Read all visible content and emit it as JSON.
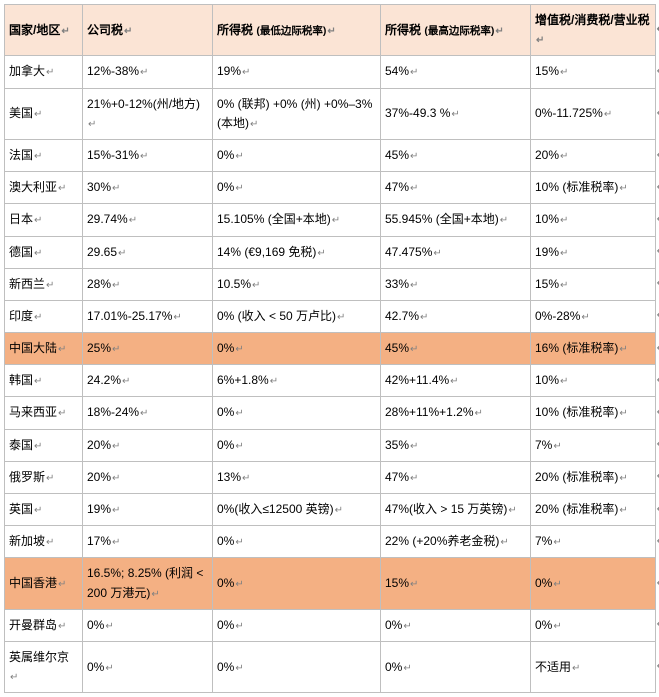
{
  "para_mark": "↵",
  "row_mark": "↵",
  "colors": {
    "header_bg": "#fbe4d5",
    "highlight_bg": "#f4b083",
    "border": "#bfbfbf",
    "text": "#000000",
    "mark": "#808080"
  },
  "headers": [
    "国家/地区",
    "公司税",
    "所得税 (最低边际税率)",
    "所得税 (最高边际税率)",
    "增值税/消费税/营业税"
  ],
  "rows": [
    {
      "hl": false,
      "cells": [
        "加拿大",
        "12%-38%",
        "19%",
        "54%",
        "15%"
      ]
    },
    {
      "hl": false,
      "cells": [
        "美国",
        "21%+0-12%(州/地方)",
        "0% (联邦) +0% (州) +0%–3% (本地)",
        "37%-49.3 %",
        "0%-11.725%"
      ]
    },
    {
      "hl": false,
      "cells": [
        "法国",
        "15%-31%",
        "0%",
        "45%",
        "20%"
      ]
    },
    {
      "hl": false,
      "cells": [
        "澳大利亚",
        "30%",
        "0%",
        "47%",
        "10% (标准税率)"
      ]
    },
    {
      "hl": false,
      "cells": [
        "日本",
        "29.74%",
        "15.105% (全国+本地)",
        "55.945% (全国+本地)",
        "10%"
      ]
    },
    {
      "hl": false,
      "cells": [
        "德国",
        "29.65",
        "14% (€9,169 免税)",
        "47.475%",
        "19%"
      ]
    },
    {
      "hl": false,
      "cells": [
        "新西兰",
        "28%",
        "10.5%",
        "33%",
        "15%"
      ]
    },
    {
      "hl": false,
      "cells": [
        "印度",
        "17.01%-25.17%",
        "0% (收入 < 50 万卢比)",
        "42.7%",
        "0%-28%"
      ]
    },
    {
      "hl": true,
      "cells": [
        "中国大陆",
        "25%",
        "0%",
        "45%",
        "16% (标准税率)"
      ]
    },
    {
      "hl": false,
      "cells": [
        "韩国",
        "24.2%",
        "6%+1.8%",
        "42%+11.4%",
        "10%"
      ]
    },
    {
      "hl": false,
      "cells": [
        "马来西亚",
        "18%-24%",
        "0%",
        "28%+11%+1.2%",
        "10% (标准税率)"
      ]
    },
    {
      "hl": false,
      "cells": [
        "泰国",
        "20%",
        "0%",
        "35%",
        "7%"
      ]
    },
    {
      "hl": false,
      "cells": [
        "俄罗斯",
        "20%",
        "13%",
        "47%",
        "20% (标准税率)"
      ]
    },
    {
      "hl": false,
      "cells": [
        "英国",
        "19%",
        "0%(收入≤12500 英镑)",
        "47%(收入 > 15 万英镑)",
        "20% (标准税率)"
      ]
    },
    {
      "hl": false,
      "cells": [
        "新加坡",
        "17%",
        "0%",
        "22% (+20%养老金税)",
        "7%"
      ]
    },
    {
      "hl": true,
      "cells": [
        "中国香港",
        "16.5%; 8.25% (利润 < 200 万港元)",
        "0%",
        "15%",
        "0%"
      ]
    },
    {
      "hl": false,
      "cells": [
        "开曼群岛",
        "0%",
        "0%",
        "0%",
        "0%"
      ]
    },
    {
      "hl": false,
      "cells": [
        "英属维尔京",
        "0%",
        "0%",
        "0%",
        "不适用"
      ]
    }
  ]
}
